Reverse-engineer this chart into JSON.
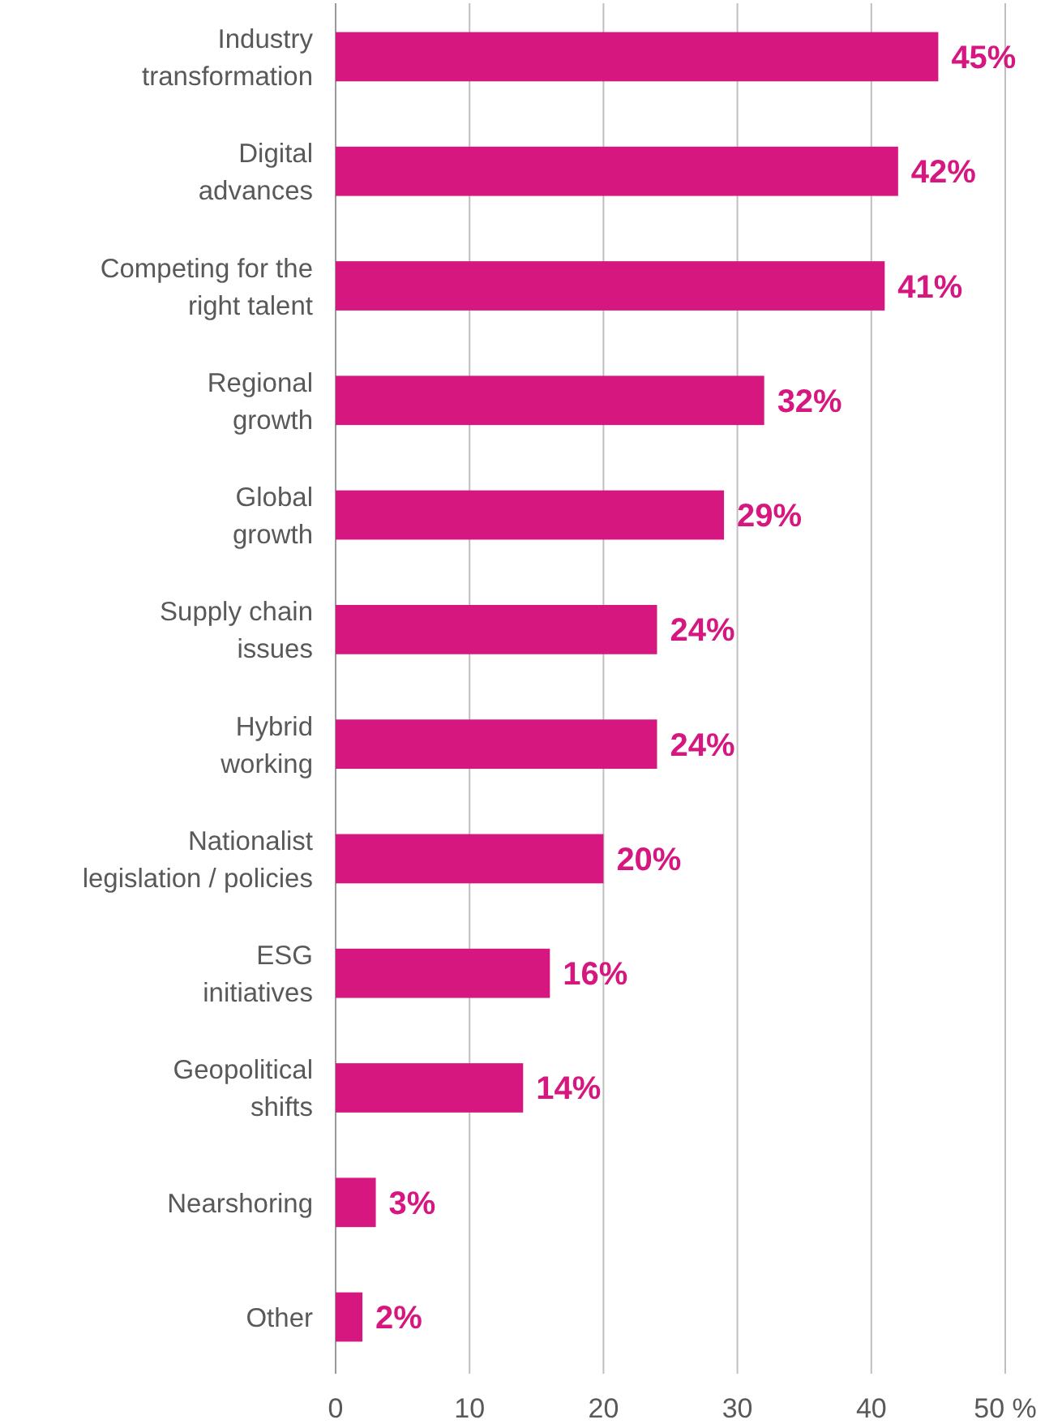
{
  "chart_data": {
    "type": "bar",
    "orientation": "horizontal",
    "categories": [
      "Industry\ntransformation",
      "Digital\nadvances",
      "Competing for the\nright talent",
      "Regional\ngrowth",
      "Global\ngrowth",
      "Supply chain\nissues",
      "Hybrid\nworking",
      "Nationalist\nlegislation / policies",
      "ESG\ninitiatives",
      "Geopolitical\nshifts",
      "Nearshoring",
      "Other"
    ],
    "values": [
      45,
      42,
      41,
      32,
      29,
      24,
      24,
      20,
      16,
      14,
      3,
      2
    ],
    "color": "#d6177f",
    "value_labels": [
      "45%",
      "42%",
      "41%",
      "32%",
      "29%",
      "24%",
      "24%",
      "20%",
      "16%",
      "14%",
      "3%",
      "2%"
    ],
    "xlim": [
      0,
      50
    ],
    "xticks": [
      0,
      10,
      20,
      30,
      40,
      {
        "value": 50,
        "label": "50 %"
      }
    ],
    "grid": "x"
  }
}
